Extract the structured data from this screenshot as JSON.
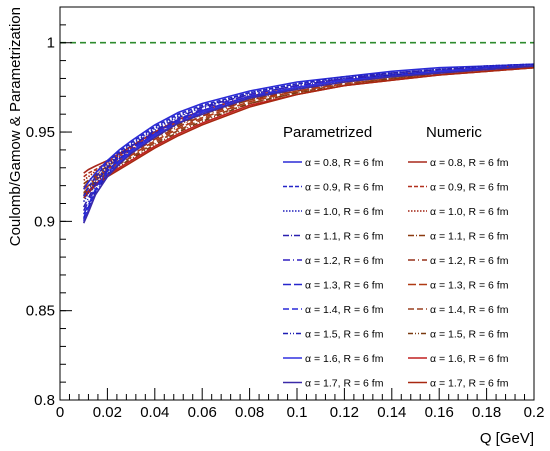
{
  "chart_data": {
    "type": "line",
    "xlabel": "Q [GeV]",
    "ylabel": "Coulomb/Gamow & Parametrization",
    "xlim": [
      0,
      0.2
    ],
    "ylim": [
      0.8,
      1.02
    ],
    "x_ticks": [
      "0",
      "0.02",
      "0.04",
      "0.06",
      "0.08",
      "0.1",
      "0.12",
      "0.14",
      "0.16",
      "0.18",
      "0.2"
    ],
    "y_ticks": [
      "0.8",
      "0.85",
      "0.9",
      "0.95",
      "1"
    ],
    "reference_line": {
      "y": 1.0,
      "color": "#2e8b2e",
      "style": "dashed"
    },
    "legend": {
      "placement": "right",
      "headers": [
        "Parametrized",
        "Numeric"
      ],
      "entries": [
        "α = 0.8, R =  6 fm",
        "α = 0.9, R =  6 fm",
        "α = 1.0, R =  6 fm",
        "α = 1.1, R =  6 fm",
        "α = 1.2, R =  6 fm",
        "α = 1.3, R =  6 fm",
        "α = 1.4, R =  6 fm",
        "α = 1.5, R =  6 fm",
        "α = 1.6, R =  6 fm",
        "α = 1.7, R =  6 fm"
      ]
    },
    "x": [
      0.01,
      0.012,
      0.015,
      0.02,
      0.025,
      0.03,
      0.04,
      0.05,
      0.06,
      0.08,
      0.1,
      0.12,
      0.14,
      0.16,
      0.18,
      0.2
    ],
    "series_parametrized": [
      {
        "alpha": 0.8,
        "values": [
          0.918,
          0.922,
          0.927,
          0.934,
          0.94,
          0.945,
          0.954,
          0.961,
          0.966,
          0.973,
          0.978,
          0.981,
          0.984,
          0.986,
          0.987,
          0.988
        ]
      },
      {
        "alpha": 0.9,
        "values": [
          0.914,
          0.919,
          0.925,
          0.933,
          0.939,
          0.944,
          0.953,
          0.96,
          0.965,
          0.972,
          0.977,
          0.981,
          0.983,
          0.985,
          0.987,
          0.988
        ]
      },
      {
        "alpha": 1.0,
        "values": [
          0.911,
          0.916,
          0.923,
          0.931,
          0.938,
          0.943,
          0.952,
          0.959,
          0.964,
          0.972,
          0.977,
          0.98,
          0.983,
          0.985,
          0.987,
          0.988
        ]
      },
      {
        "alpha": 1.1,
        "values": [
          0.908,
          0.913,
          0.921,
          0.93,
          0.937,
          0.942,
          0.951,
          0.958,
          0.964,
          0.971,
          0.976,
          0.98,
          0.983,
          0.985,
          0.986,
          0.987
        ]
      },
      {
        "alpha": 1.2,
        "values": [
          0.906,
          0.911,
          0.919,
          0.929,
          0.936,
          0.941,
          0.95,
          0.957,
          0.963,
          0.971,
          0.976,
          0.98,
          0.982,
          0.984,
          0.986,
          0.987
        ]
      },
      {
        "alpha": 1.3,
        "values": [
          0.904,
          0.909,
          0.918,
          0.928,
          0.935,
          0.94,
          0.949,
          0.957,
          0.962,
          0.97,
          0.975,
          0.979,
          0.982,
          0.984,
          0.986,
          0.987
        ]
      },
      {
        "alpha": 1.4,
        "values": [
          0.902,
          0.908,
          0.917,
          0.927,
          0.934,
          0.94,
          0.949,
          0.956,
          0.962,
          0.97,
          0.975,
          0.979,
          0.982,
          0.984,
          0.986,
          0.987
        ]
      },
      {
        "alpha": 1.5,
        "values": [
          0.901,
          0.907,
          0.916,
          0.926,
          0.933,
          0.939,
          0.948,
          0.955,
          0.961,
          0.969,
          0.975,
          0.979,
          0.982,
          0.984,
          0.985,
          0.987
        ]
      },
      {
        "alpha": 1.6,
        "values": [
          0.9,
          0.906,
          0.915,
          0.925,
          0.933,
          0.939,
          0.948,
          0.955,
          0.961,
          0.969,
          0.975,
          0.979,
          0.981,
          0.984,
          0.985,
          0.987
        ]
      },
      {
        "alpha": 1.7,
        "values": [
          0.899,
          0.905,
          0.915,
          0.925,
          0.932,
          0.938,
          0.947,
          0.955,
          0.96,
          0.969,
          0.974,
          0.978,
          0.981,
          0.983,
          0.985,
          0.987
        ]
      }
    ],
    "series_numeric": [
      {
        "alpha": 0.8,
        "values": [
          0.927,
          0.929,
          0.931,
          0.934,
          0.938,
          0.942,
          0.95,
          0.957,
          0.962,
          0.97,
          0.975,
          0.979,
          0.982,
          0.984,
          0.986,
          0.987
        ]
      },
      {
        "alpha": 0.9,
        "values": [
          0.925,
          0.927,
          0.929,
          0.933,
          0.937,
          0.941,
          0.949,
          0.956,
          0.961,
          0.969,
          0.975,
          0.979,
          0.982,
          0.984,
          0.986,
          0.987
        ]
      },
      {
        "alpha": 1.0,
        "values": [
          0.923,
          0.925,
          0.928,
          0.932,
          0.936,
          0.94,
          0.948,
          0.955,
          0.96,
          0.969,
          0.974,
          0.978,
          0.981,
          0.984,
          0.985,
          0.987
        ]
      },
      {
        "alpha": 1.1,
        "values": [
          0.921,
          0.923,
          0.926,
          0.931,
          0.935,
          0.939,
          0.947,
          0.954,
          0.96,
          0.968,
          0.974,
          0.978,
          0.981,
          0.983,
          0.985,
          0.987
        ]
      },
      {
        "alpha": 1.2,
        "values": [
          0.919,
          0.922,
          0.925,
          0.93,
          0.934,
          0.938,
          0.946,
          0.953,
          0.959,
          0.968,
          0.973,
          0.978,
          0.981,
          0.983,
          0.985,
          0.987
        ]
      },
      {
        "alpha": 1.3,
        "values": [
          0.918,
          0.92,
          0.924,
          0.929,
          0.933,
          0.937,
          0.945,
          0.952,
          0.958,
          0.967,
          0.973,
          0.977,
          0.98,
          0.983,
          0.985,
          0.986
        ]
      },
      {
        "alpha": 1.4,
        "values": [
          0.916,
          0.919,
          0.923,
          0.928,
          0.932,
          0.936,
          0.944,
          0.951,
          0.957,
          0.966,
          0.972,
          0.977,
          0.98,
          0.983,
          0.985,
          0.986
        ]
      },
      {
        "alpha": 1.5,
        "values": [
          0.915,
          0.918,
          0.922,
          0.927,
          0.931,
          0.935,
          0.943,
          0.95,
          0.956,
          0.966,
          0.972,
          0.976,
          0.98,
          0.982,
          0.984,
          0.986
        ]
      },
      {
        "alpha": 1.6,
        "values": [
          0.914,
          0.917,
          0.921,
          0.926,
          0.93,
          0.934,
          0.942,
          0.949,
          0.955,
          0.965,
          0.971,
          0.976,
          0.979,
          0.982,
          0.984,
          0.986
        ]
      },
      {
        "alpha": 1.7,
        "values": [
          0.913,
          0.916,
          0.92,
          0.925,
          0.929,
          0.933,
          0.941,
          0.948,
          0.954,
          0.964,
          0.971,
          0.976,
          0.979,
          0.982,
          0.984,
          0.986
        ]
      }
    ],
    "colors": {
      "parametrized": [
        "#2b2bd6",
        "#2525c8",
        "#2020bb",
        "#2a20b0",
        "#3020c0",
        "#2626cc",
        "#2a2ad8",
        "#1e1eb4",
        "#3030e0",
        "#3a2aa8"
      ],
      "numeric": [
        "#a8281c",
        "#b2301e",
        "#a02010",
        "#8c3a10",
        "#96301a",
        "#b03a14",
        "#9a4020",
        "#7a3a10",
        "#c02020",
        "#a82810"
      ],
      "grid": "none"
    },
    "line_styles": [
      "",
      "4,2",
      "1.5,1.5",
      "6,2,1,2",
      "7,3,1,3",
      "8,3",
      "6,3",
      "5,2,1,2,1,2",
      "",
      ""
    ]
  }
}
